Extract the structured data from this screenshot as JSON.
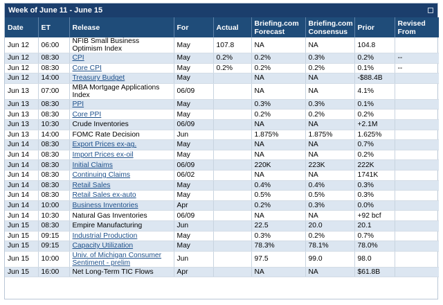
{
  "title": "Week of June 11 - June 15",
  "columns": [
    "Date",
    "ET",
    "Release",
    "For",
    "Actual",
    "Briefing.com Forecast",
    "Briefing.com Consensus",
    "Prior",
    "Revised From"
  ],
  "rows": [
    {
      "date": "Jun 12",
      "et": "06:00",
      "release": "NFIB Small Business Optimism Index",
      "link": false,
      "tall": true,
      "for": "May",
      "actual": "107.8",
      "forecast": "NA",
      "consensus": "NA",
      "prior": "104.8",
      "revised": ""
    },
    {
      "date": "Jun 12",
      "et": "08:30",
      "release": "CPI",
      "link": true,
      "tall": false,
      "for": "May",
      "actual": "0.2%",
      "forecast": "0.2%",
      "consensus": "0.3%",
      "prior": "0.2%",
      "revised": "--"
    },
    {
      "date": "Jun 12",
      "et": "08:30",
      "release": "Core CPI",
      "link": true,
      "tall": false,
      "for": "May",
      "actual": "0.2%",
      "forecast": "0.2%",
      "consensus": "0.2%",
      "prior": "0.1%",
      "revised": "--"
    },
    {
      "date": "Jun 12",
      "et": "14:00",
      "release": "Treasury Budget",
      "link": true,
      "tall": false,
      "for": "May",
      "actual": "",
      "forecast": "NA",
      "consensus": "NA",
      "prior": "-$88.4B",
      "revised": ""
    },
    {
      "date": "Jun 13",
      "et": "07:00",
      "release": "MBA Mortgage Applications Index",
      "link": false,
      "tall": true,
      "for": "06/09",
      "actual": "",
      "forecast": "NA",
      "consensus": "NA",
      "prior": "4.1%",
      "revised": ""
    },
    {
      "date": "Jun 13",
      "et": "08:30",
      "release": "PPI",
      "link": true,
      "tall": false,
      "for": "May",
      "actual": "",
      "forecast": "0.3%",
      "consensus": "0.3%",
      "prior": "0.1%",
      "revised": ""
    },
    {
      "date": "Jun 13",
      "et": "08:30",
      "release": "Core PPI",
      "link": true,
      "tall": false,
      "for": "May",
      "actual": "",
      "forecast": "0.2%",
      "consensus": "0.2%",
      "prior": "0.2%",
      "revised": ""
    },
    {
      "date": "Jun 13",
      "et": "10:30",
      "release": "Crude Inventories",
      "link": false,
      "tall": false,
      "for": "06/09",
      "actual": "",
      "forecast": "NA",
      "consensus": "NA",
      "prior": "+2.1M",
      "revised": ""
    },
    {
      "date": "Jun 13",
      "et": "14:00",
      "release": "FOMC Rate Decision",
      "link": false,
      "tall": false,
      "for": "Jun",
      "actual": "",
      "forecast": "1.875%",
      "consensus": "1.875%",
      "prior": "1.625%",
      "revised": ""
    },
    {
      "date": "Jun 14",
      "et": "08:30",
      "release": "Export Prices ex-ag.",
      "link": true,
      "tall": false,
      "for": "May",
      "actual": "",
      "forecast": "NA",
      "consensus": "NA",
      "prior": "0.7%",
      "revised": ""
    },
    {
      "date": "Jun 14",
      "et": "08:30",
      "release": "Import Prices ex-oil",
      "link": true,
      "tall": false,
      "for": "May",
      "actual": "",
      "forecast": "NA",
      "consensus": "NA",
      "prior": "0.2%",
      "revised": ""
    },
    {
      "date": "Jun 14",
      "et": "08:30",
      "release": "Initial Claims",
      "link": true,
      "tall": false,
      "for": "06/09",
      "actual": "",
      "forecast": "220K",
      "consensus": "223K",
      "prior": "222K",
      "revised": ""
    },
    {
      "date": "Jun 14",
      "et": "08:30",
      "release": "Continuing Claims",
      "link": true,
      "tall": false,
      "for": "06/02",
      "actual": "",
      "forecast": "NA",
      "consensus": "NA",
      "prior": "1741K",
      "revised": ""
    },
    {
      "date": "Jun 14",
      "et": "08:30",
      "release": "Retail Sales",
      "link": true,
      "tall": false,
      "for": "May",
      "actual": "",
      "forecast": "0.4%",
      "consensus": "0.4%",
      "prior": "0.3%",
      "revised": ""
    },
    {
      "date": "Jun 14",
      "et": "08:30",
      "release": "Retail Sales ex-auto",
      "link": true,
      "tall": false,
      "for": "May",
      "actual": "",
      "forecast": "0.5%",
      "consensus": "0.5%",
      "prior": "0.3%",
      "revised": ""
    },
    {
      "date": "Jun 14",
      "et": "10:00",
      "release": "Business Inventories",
      "link": true,
      "tall": false,
      "for": "Apr",
      "actual": "",
      "forecast": "0.2%",
      "consensus": "0.3%",
      "prior": "0.0%",
      "revised": ""
    },
    {
      "date": "Jun 14",
      "et": "10:30",
      "release": "Natural Gas Inventories",
      "link": false,
      "tall": false,
      "for": "06/09",
      "actual": "",
      "forecast": "NA",
      "consensus": "NA",
      "prior": "+92 bcf",
      "revised": ""
    },
    {
      "date": "Jun 15",
      "et": "08:30",
      "release": "Empire Manufacturing",
      "link": false,
      "tall": false,
      "for": "Jun",
      "actual": "",
      "forecast": "22.5",
      "consensus": "20.0",
      "prior": "20.1",
      "revised": ""
    },
    {
      "date": "Jun 15",
      "et": "09:15",
      "release": "Industrial Production",
      "link": true,
      "tall": false,
      "for": "May",
      "actual": "",
      "forecast": "0.3%",
      "consensus": "0.2%",
      "prior": "0.7%",
      "revised": ""
    },
    {
      "date": "Jun 15",
      "et": "09:15",
      "release": "Capacity Utilization",
      "link": true,
      "tall": false,
      "for": "May",
      "actual": "",
      "forecast": "78.3%",
      "consensus": "78.1%",
      "prior": "78.0%",
      "revised": ""
    },
    {
      "date": "Jun 15",
      "et": "10:00",
      "release": "Univ. of Michigan Consumer Sentiment - prelim",
      "link": true,
      "tall": true,
      "for": "Jun",
      "actual": "",
      "forecast": "97.5",
      "consensus": "99.0",
      "prior": "98.0",
      "revised": ""
    },
    {
      "date": "Jun 15",
      "et": "16:00",
      "release": "Net Long-Term TIC Flows",
      "link": false,
      "tall": false,
      "for": "Apr",
      "actual": "",
      "forecast": "NA",
      "consensus": "NA",
      "prior": "$61.8B",
      "revised": ""
    }
  ],
  "colors": {
    "title_bg": "#1b3e6c",
    "header_bg": "#1f4c79",
    "alt_row": "#dce6f1",
    "link": "#1c4f8a"
  }
}
